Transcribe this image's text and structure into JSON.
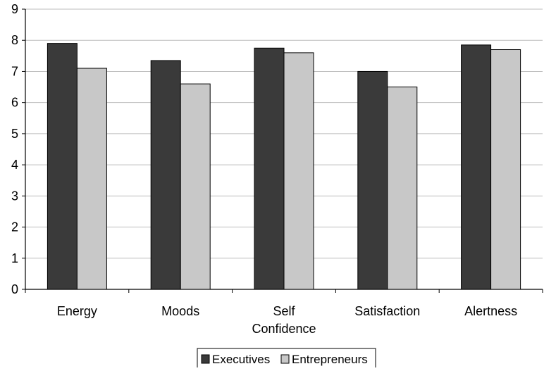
{
  "chart_data": {
    "type": "bar",
    "categories": [
      [
        "Energy"
      ],
      [
        "Moods"
      ],
      [
        "Self",
        "Confidence"
      ],
      [
        "Satisfaction"
      ],
      [
        "Alertness"
      ]
    ],
    "series": [
      {
        "name": "Executives",
        "values": [
          7.9,
          7.35,
          7.75,
          7.0,
          7.85
        ],
        "color": "#3a3a3a"
      },
      {
        "name": "Entrepreneurs",
        "values": [
          7.1,
          6.6,
          7.6,
          6.5,
          7.7
        ],
        "color": "#c8c8c8"
      }
    ],
    "ylim": [
      0,
      9
    ],
    "yticks": [
      "0",
      "1",
      "2",
      "3",
      "4",
      "5",
      "6",
      "7",
      "8",
      "9"
    ],
    "grid": true,
    "legend_position": "bottom"
  }
}
